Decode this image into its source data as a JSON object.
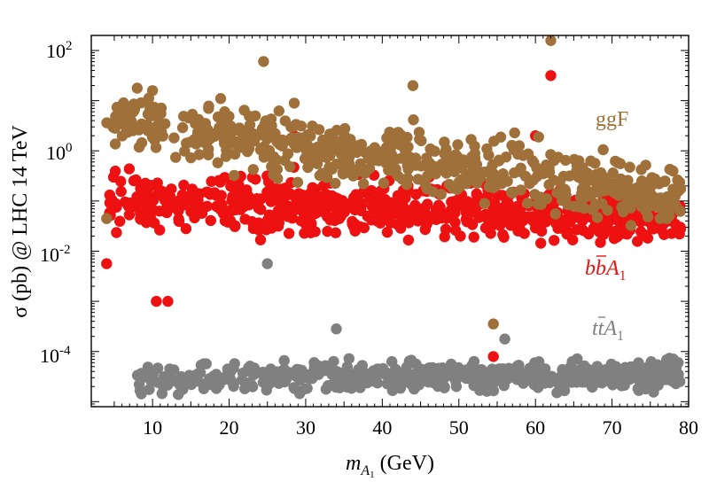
{
  "chart_data": {
    "type": "scatter",
    "title": "",
    "xlabel_main": "m",
    "xlabel_sub": "A",
    "xlabel_subsub": "1",
    "xlabel_unit": " (GeV)",
    "ylabel": "σ (pb) @ LHC 14 TeV",
    "xlim": [
      2,
      80
    ],
    "ylim_log10": [
      -5.1,
      2.3
    ],
    "x_ticks": [
      10,
      20,
      30,
      40,
      50,
      60,
      70,
      80
    ],
    "y_ticks": [
      {
        "base": "10",
        "exp": "2",
        "value_log10": 2
      },
      {
        "base": "10",
        "exp": "",
        "value_log10": 0,
        "label": "1"
      },
      {
        "base": "10",
        "exp": "-2",
        "value_log10": -2
      },
      {
        "base": "10",
        "exp": "-4",
        "value_log10": -4
      }
    ],
    "y_tick_one_label": "10",
    "y_tick_one_exp": "0",
    "grid": false,
    "legend_position": "right-inside",
    "series": [
      {
        "name": "ggF",
        "label_text": "ggF",
        "color": "#a0703a",
        "x_range": [
          4,
          79
        ],
        "log10_y_center_start": 0.6,
        "log10_y_center_end": -0.9,
        "log10_y_spread": 1.05,
        "count": 620,
        "extra_points": [
          [
            24.5,
            1.78
          ],
          [
            62,
            2.2
          ],
          [
            54.5,
            -3.45
          ],
          [
            4,
            -1.35
          ],
          [
            44,
            1.3
          ],
          [
            8,
            1.25
          ],
          [
            10,
            1.2
          ],
          [
            28.5,
            0.95
          ]
        ]
      },
      {
        "name": "bbA1",
        "label_main": "b",
        "label_bar": "b",
        "label_A": "A",
        "label_sub": "1",
        "color": "#ee1111",
        "x_range": [
          4,
          79
        ],
        "log10_y_center_start": -1.0,
        "log10_y_center_end": -1.3,
        "log10_y_spread": 0.95,
        "count": 680,
        "extra_points": [
          [
            62,
            1.5
          ],
          [
            54.5,
            -4.1
          ],
          [
            4,
            -2.25
          ],
          [
            10.5,
            -3.0
          ],
          [
            12,
            -3.0
          ],
          [
            60,
            0.3
          ],
          [
            28.5,
            0.3
          ]
        ]
      },
      {
        "name": "ttA1",
        "label_main": "t",
        "label_bar": "t",
        "label_A": "A",
        "label_sub": "1",
        "color": "#808080",
        "x_range": [
          8,
          79
        ],
        "log10_y_center_start": -4.55,
        "log10_y_center_end": -4.45,
        "log10_y_spread": 0.5,
        "count": 520,
        "extra_points": [
          [
            25,
            -2.25
          ],
          [
            78,
            -4.15
          ],
          [
            75,
            -4.6
          ],
          [
            34,
            -3.55
          ],
          [
            56,
            -3.75
          ]
        ]
      }
    ]
  }
}
